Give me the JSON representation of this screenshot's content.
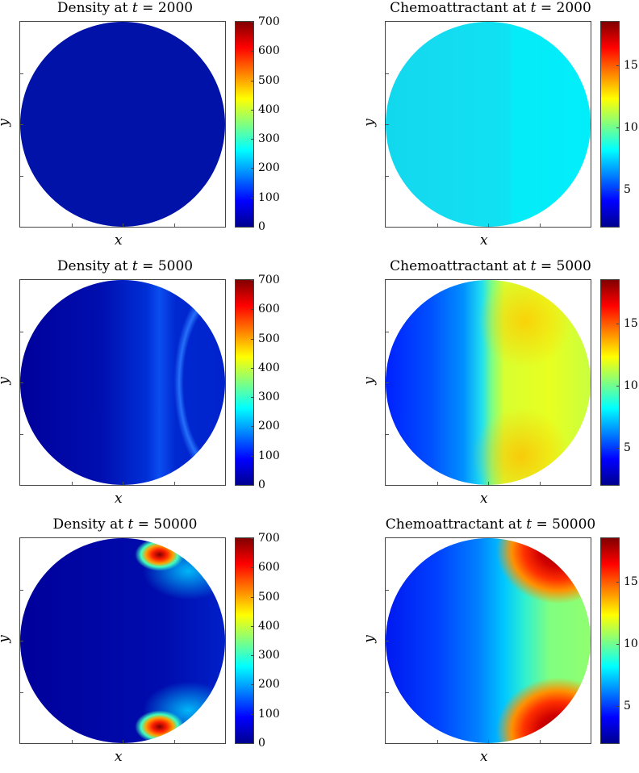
{
  "chart_data": [
    {
      "type": "heatmap",
      "title_prefix": "Density at ",
      "title_var": "t",
      "title_time": "= 2000",
      "xlabel": "x",
      "ylabel": "y",
      "colorbar_ticks": [
        "700",
        "600",
        "500",
        "400",
        "300",
        "200",
        "100",
        "0"
      ],
      "colorbar_range": [
        0,
        700
      ],
      "colormap": "jet"
    },
    {
      "type": "heatmap",
      "title_prefix": "Chemoattractant at ",
      "title_var": "t",
      "title_time": "= 2000",
      "xlabel": "x",
      "ylabel": "y",
      "colorbar_ticks": [
        "15",
        "10",
        "5"
      ],
      "colorbar_range": [
        2,
        18.5
      ],
      "colormap": "jet"
    },
    {
      "type": "heatmap",
      "title_prefix": "Density at ",
      "title_var": "t",
      "title_time": "= 5000",
      "xlabel": "x",
      "ylabel": "y",
      "colorbar_ticks": [
        "700",
        "600",
        "500",
        "400",
        "300",
        "200",
        "100",
        "0"
      ],
      "colorbar_range": [
        0,
        700
      ],
      "colormap": "jet"
    },
    {
      "type": "heatmap",
      "title_prefix": "Chemoattractant at ",
      "title_var": "t",
      "title_time": "= 5000",
      "xlabel": "x",
      "ylabel": "y",
      "colorbar_ticks": [
        "15",
        "10",
        "5"
      ],
      "colorbar_range": [
        2,
        18.5
      ],
      "colormap": "jet"
    },
    {
      "type": "heatmap",
      "title_prefix": "Density at ",
      "title_var": "t",
      "title_time": "= 50000",
      "xlabel": "x",
      "ylabel": "y",
      "colorbar_ticks": [
        "700",
        "600",
        "500",
        "400",
        "300",
        "200",
        "100",
        "0"
      ],
      "colorbar_range": [
        0,
        700
      ],
      "colormap": "jet"
    },
    {
      "type": "heatmap",
      "title_prefix": "Chemoattractant at ",
      "title_var": "t",
      "title_time": "= 50000",
      "xlabel": "x",
      "ylabel": "y",
      "colorbar_ticks": [
        "15",
        "10",
        "5"
      ],
      "colorbar_range": [
        2,
        18.5
      ],
      "colormap": "jet"
    }
  ]
}
